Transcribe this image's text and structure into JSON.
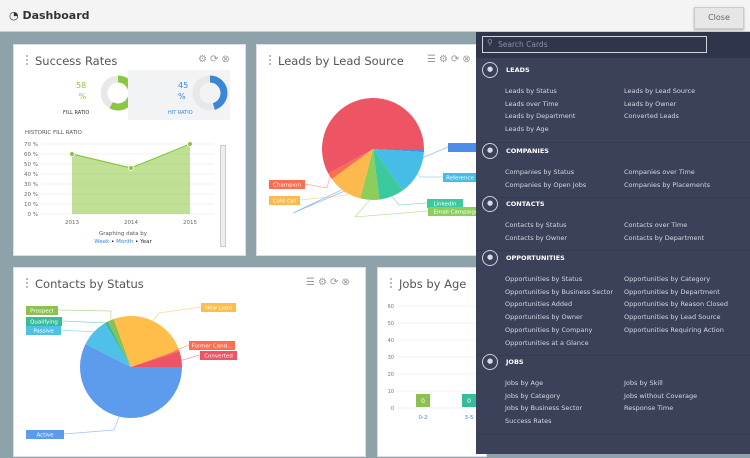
{
  "header": {
    "title": "Dashboard",
    "close_label": "Close"
  },
  "success_card": {
    "title": "Success Rates",
    "fill_value": "58",
    "fill_unit": "%",
    "fill_label": "FILL RATIO",
    "hit_value": "45",
    "hit_unit": "%",
    "hit_label": "HIT RATIO",
    "historic_label": "HISTORIC FILL RATIO",
    "graphing_label": "Graphing data by",
    "period_links": [
      "Week",
      "Month",
      "Year"
    ],
    "colors": {
      "fill": "#8dc63f",
      "hit": "#3a87d8"
    }
  },
  "leads_card": {
    "title": "Leads by Lead Source"
  },
  "contacts_card": {
    "title": "Contacts by Status"
  },
  "jobs_card": {
    "title": "Jobs by Age"
  },
  "panel": {
    "search_placeholder": "Search Cards",
    "sections": [
      {
        "title": "LEADS",
        "icon": "pie-chart-icon",
        "items": [
          "Leads by Status",
          "Leads by Lead Source",
          "Leads over Time",
          "Leads by Owner",
          "Leads by Department",
          "Converted Leads",
          "Leads by Age"
        ]
      },
      {
        "title": "COMPANIES",
        "icon": "building-icon",
        "items": [
          "Companies by Status",
          "Companies over Time",
          "Companies by Open Jobs",
          "Companies by Placements"
        ]
      },
      {
        "title": "CONTACTS",
        "icon": "people-icon",
        "items": [
          "Contacts by Status",
          "Contacts over Time",
          "Contacts by Owner",
          "Contacts by Department"
        ]
      },
      {
        "title": "OPPORTUNITIES",
        "icon": "target-icon",
        "items": [
          "Opportunities by Status",
          "Opportunities by Category",
          "Opportunities by Business Sector",
          "Opportunities by Department",
          "Opportunities Added",
          "Opportunities by Reason Closed",
          "Opportunities by Owner",
          "Opportunities by Lead Source",
          "Opportunities by Company",
          "Opportunities Requiring Action",
          "Opportunities at a Glance"
        ]
      },
      {
        "title": "JOBS",
        "icon": "briefcase-icon",
        "items": [
          "Jobs by Age",
          "Jobs by Skill",
          "Jobs by Category",
          "Jobs without Coverage",
          "Jobs by Business Sector",
          "Response Time",
          "Success Rates"
        ]
      }
    ]
  },
  "chart_data": [
    {
      "type": "area",
      "title": "HISTORIC FILL RATIO",
      "categories": [
        "2013",
        "2014",
        "2015"
      ],
      "values": [
        60,
        46,
        70
      ],
      "ylim": [
        0,
        70
      ],
      "yticks": [
        "0 %",
        "10 %",
        "20 %",
        "30 %",
        "40 %",
        "50 %",
        "60 %",
        "70 %"
      ],
      "grid": true,
      "color": "#8dc63f"
    },
    {
      "type": "pie",
      "title": "Leads by Lead Source",
      "slices": [
        {
          "name": "Referral",
          "value": 1,
          "color": "#4a8ee8"
        },
        {
          "name": "Reference",
          "value": 14,
          "color": "#45bde6"
        },
        {
          "name": "LinkedIn",
          "value": 8,
          "color": "#3cc9a0"
        },
        {
          "name": "Email Campaign",
          "value": 6,
          "color": "#8cce5a"
        },
        {
          "name": "Cold call",
          "value": 11,
          "color": "#fdb94e"
        },
        {
          "name": "Champion",
          "value": 2,
          "color": "#fb6e52"
        },
        {
          "name": "",
          "value": 58,
          "color": "#ed5565"
        }
      ]
    },
    {
      "type": "pie",
      "title": "Contacts by Status",
      "slices": [
        {
          "name": "Active",
          "value": 57.5,
          "color": "#5d9cec"
        },
        {
          "name": "Passive",
          "value": 9,
          "color": "#4fc1e9"
        },
        {
          "name": "Qualifying",
          "value": 1,
          "color": "#37bc9b"
        },
        {
          "name": "Prospect",
          "value": 2,
          "color": "#8cc152"
        },
        {
          "name": "New Lead",
          "value": 25,
          "color": "#ffbd4a"
        },
        {
          "name": "Former Cand...",
          "value": 0.5,
          "color": "#fc6e51"
        },
        {
          "name": "Converted",
          "value": 5,
          "color": "#ed5565"
        }
      ]
    },
    {
      "type": "bar",
      "title": "Jobs by Age",
      "categories": [
        "0-2",
        "3-5"
      ],
      "values": [
        0,
        0
      ],
      "data_labels": [
        "0",
        "0"
      ],
      "ylim": [
        0,
        60
      ],
      "yticks": [
        "0",
        "10",
        "20",
        "30",
        "40",
        "50",
        "60"
      ],
      "colors": [
        "#8cc152",
        "#37bc9b"
      ]
    }
  ]
}
